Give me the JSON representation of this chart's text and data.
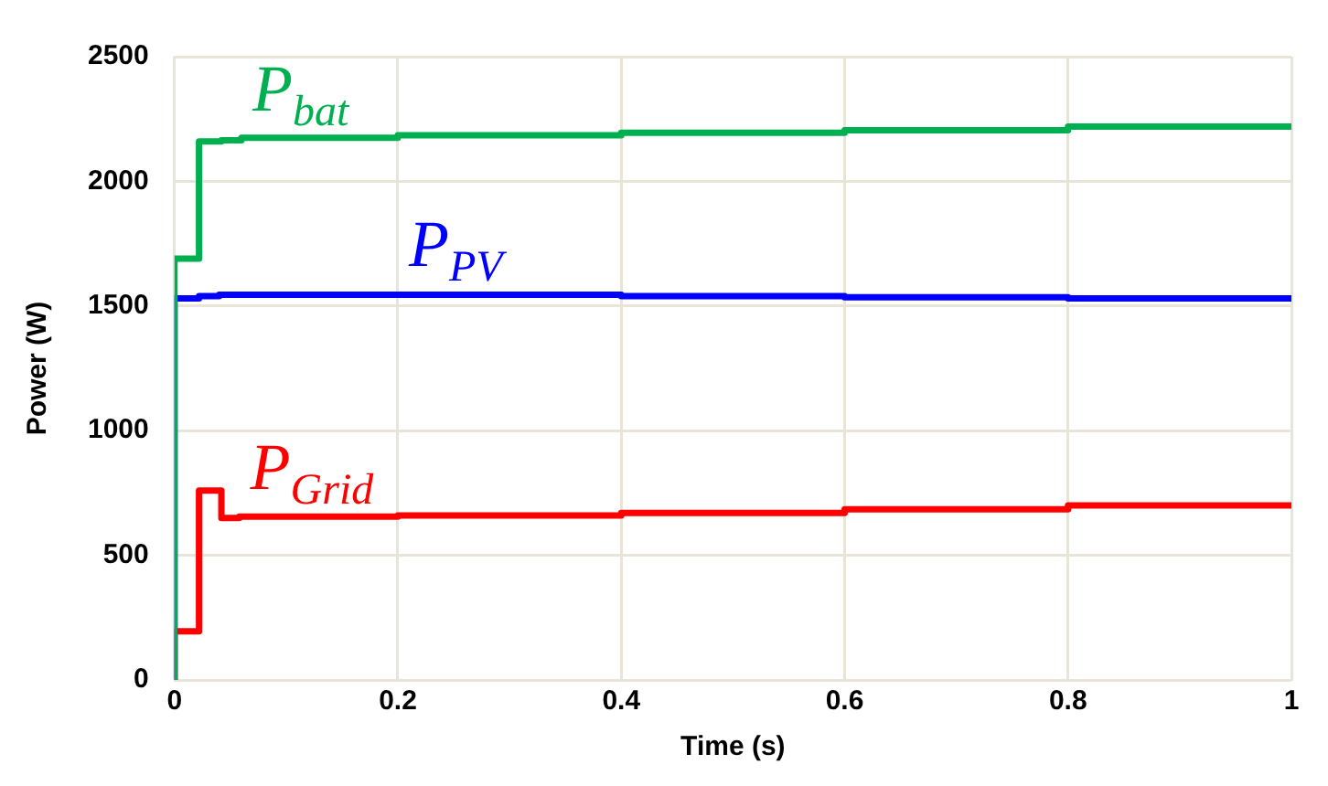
{
  "chart_data": {
    "type": "step",
    "xlabel": "Time (s)",
    "ylabel": "Power (W)",
    "xlim": [
      0,
      1
    ],
    "xticks": [
      0,
      0.2,
      0.4,
      0.6,
      0.8,
      1
    ],
    "ylim": [
      0,
      2500
    ],
    "yticks": [
      0,
      500,
      1000,
      1500,
      2000,
      2500
    ],
    "grid": true,
    "legend": false,
    "line_style": "solid",
    "marker": "none",
    "series": [
      {
        "name": "P$_{bat}$",
        "color": "#00b050",
        "x": [
          0,
          0.022,
          0.042,
          0.06,
          0.2,
          0.4,
          0.6,
          0.8,
          1
        ],
        "values": [
          0,
          1690,
          2160,
          2165,
          2175,
          2185,
          2195,
          2205,
          2220
        ]
      },
      {
        "name": "P$_{PV}$",
        "color": "#0000ff",
        "x": [
          0,
          0.022,
          0.04,
          0.2,
          0.4,
          0.6,
          0.8,
          1
        ],
        "values": [
          0,
          1530,
          1540,
          1545,
          1545,
          1540,
          1535,
          1530
        ]
      },
      {
        "name": "P$_{Grid}$",
        "color": "#ff0000",
        "x": [
          0,
          0.022,
          0.042,
          0.058,
          0.2,
          0.4,
          0.6,
          0.8,
          1
        ],
        "values": [
          0,
          195,
          760,
          650,
          655,
          660,
          670,
          685,
          700
        ]
      }
    ]
  }
}
